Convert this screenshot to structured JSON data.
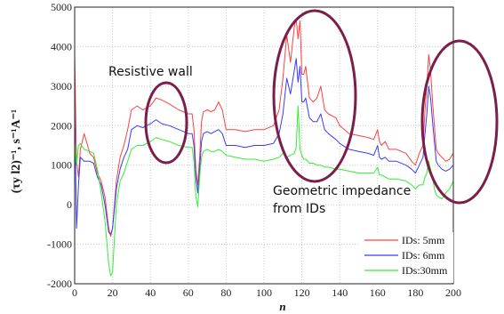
{
  "chart_data": {
    "type": "line",
    "xlabel": "n",
    "ylabel": "(τy l2)⁻¹, s⁻¹A⁻¹",
    "xlim": [
      0,
      200
    ],
    "ylim": [
      -2000,
      5000
    ],
    "xticks": [
      "0",
      "20",
      "40",
      "60",
      "80",
      "100",
      "120",
      "140",
      "160",
      "180",
      "200"
    ],
    "yticks": [
      "-2000",
      "-1000",
      "0",
      "1000",
      "2000",
      "3000",
      "4000",
      "5000"
    ],
    "grid": true,
    "legend_position": "bottom-right",
    "annotations": {
      "resistive": "Resistive wall",
      "geometric_1": "Geometric impedance",
      "geometric_2": "from IDs"
    },
    "ellipse_color": "#7b1f4a",
    "series": [
      {
        "name": "IDs: 5mm",
        "color": "#ff4040",
        "x": [
          0,
          1,
          2,
          3,
          5,
          8,
          10,
          12,
          14,
          16,
          18,
          19,
          20,
          22,
          24,
          26,
          28,
          30,
          33,
          36,
          40,
          43,
          46,
          50,
          55,
          60,
          62,
          63,
          64,
          65,
          66,
          67,
          68,
          70,
          72,
          74,
          76,
          78,
          80,
          85,
          90,
          95,
          100,
          105,
          108,
          110,
          112,
          114,
          116,
          117,
          118,
          119,
          120,
          121,
          122,
          124,
          126,
          128,
          130,
          132,
          134,
          138,
          140,
          145,
          150,
          155,
          158,
          160,
          161,
          162,
          164,
          166,
          170,
          175,
          178,
          180,
          182,
          184,
          185,
          186,
          187,
          188,
          189,
          190,
          191,
          192,
          194,
          196,
          198,
          200
        ],
        "y": [
          3800,
          1100,
          700,
          1400,
          1800,
          1300,
          1200,
          800,
          600,
          200,
          -600,
          -800,
          -600,
          600,
          1200,
          1500,
          1900,
          2400,
          2500,
          2400,
          2500,
          2700,
          2650,
          2550,
          2400,
          2300,
          2300,
          1900,
          900,
          500,
          1200,
          2100,
          2350,
          2400,
          2350,
          2400,
          2600,
          2400,
          1900,
          1900,
          1850,
          1900,
          1900,
          2000,
          2400,
          3200,
          4300,
          3600,
          4500,
          4700,
          4200,
          4650,
          3300,
          3300,
          3500,
          2700,
          2600,
          2700,
          3000,
          2400,
          2300,
          2200,
          2000,
          1800,
          1750,
          1700,
          1650,
          1900,
          1600,
          1500,
          1600,
          1400,
          1400,
          1300,
          1100,
          1000,
          1300,
          1500,
          2400,
          3000,
          3800,
          3400,
          2600,
          2000,
          1400,
          1300,
          1200,
          1100,
          1150,
          1300
        ]
      },
      {
        "name": "IDs: 6mm",
        "color": "#3a3aff",
        "x": [
          0,
          1,
          2,
          3,
          5,
          8,
          10,
          12,
          14,
          16,
          18,
          19,
          20,
          22,
          24,
          26,
          28,
          30,
          33,
          36,
          40,
          43,
          46,
          50,
          55,
          60,
          62,
          63,
          64,
          65,
          66,
          67,
          68,
          70,
          72,
          74,
          76,
          78,
          80,
          85,
          90,
          95,
          100,
          105,
          108,
          110,
          112,
          114,
          116,
          117,
          118,
          119,
          120,
          121,
          122,
          124,
          126,
          128,
          130,
          132,
          134,
          138,
          140,
          145,
          150,
          155,
          158,
          160,
          161,
          162,
          164,
          166,
          170,
          175,
          178,
          180,
          182,
          184,
          185,
          186,
          187,
          188,
          189,
          190,
          191,
          192,
          194,
          196,
          198,
          200
        ],
        "y": [
          2500,
          -600,
          500,
          1200,
          1100,
          1100,
          1050,
          700,
          500,
          0,
          -700,
          -750,
          -600,
          400,
          900,
          1200,
          1400,
          1900,
          2000,
          1950,
          2050,
          2150,
          2050,
          2000,
          1900,
          1800,
          1800,
          1500,
          700,
          300,
          900,
          1600,
          1800,
          1850,
          1800,
          1850,
          1900,
          1800,
          1500,
          1500,
          1450,
          1500,
          1500,
          1550,
          1800,
          2300,
          3200,
          2800,
          3400,
          3700,
          3100,
          3500,
          2600,
          2600,
          2700,
          2200,
          2100,
          2100,
          2300,
          1900,
          1800,
          1650,
          1550,
          1400,
          1350,
          1300,
          1250,
          1500,
          1200,
          1150,
          1200,
          1100,
          1100,
          1000,
          900,
          800,
          1000,
          1200,
          1800,
          2300,
          3000,
          2700,
          2100,
          1600,
          1100,
          1000,
          900,
          850,
          900,
          1000
        ]
      },
      {
        "name": "IDs:30mm",
        "color": "#33ee33",
        "x": [
          0,
          1,
          2,
          3,
          5,
          8,
          10,
          12,
          14,
          16,
          18,
          19,
          20,
          22,
          24,
          26,
          28,
          30,
          33,
          36,
          40,
          43,
          46,
          50,
          55,
          60,
          62,
          63,
          64,
          65,
          66,
          67,
          68,
          70,
          72,
          74,
          76,
          78,
          80,
          85,
          90,
          95,
          100,
          105,
          108,
          110,
          112,
          114,
          116,
          117,
          118,
          119,
          120,
          121,
          122,
          124,
          126,
          128,
          130,
          132,
          134,
          138,
          140,
          145,
          150,
          155,
          158,
          160,
          161,
          162,
          164,
          166,
          170,
          175,
          178,
          180,
          182,
          184,
          185,
          186,
          187,
          188,
          189,
          190,
          191,
          192,
          194,
          196,
          198,
          200
        ],
        "y": [
          1600,
          1000,
          1500,
          1550,
          1400,
          1350,
          1300,
          900,
          300,
          -400,
          -1500,
          -1800,
          -1700,
          0,
          600,
          800,
          1100,
          1400,
          1500,
          1500,
          1600,
          1700,
          1650,
          1600,
          1500,
          1450,
          1450,
          1100,
          200,
          -50,
          700,
          1200,
          1350,
          1400,
          1350,
          1350,
          1400,
          1350,
          1250,
          1200,
          1150,
          1150,
          1100,
          1150,
          1200,
          1300,
          1200,
          1250,
          1300,
          1450,
          2500,
          1400,
          1250,
          1150,
          1150,
          1050,
          1050,
          1000,
          1000,
          950,
          950,
          900,
          900,
          850,
          800,
          800,
          800,
          950,
          750,
          750,
          700,
          650,
          650,
          600,
          500,
          400,
          500,
          500,
          700,
          800,
          1100,
          900,
          700,
          400,
          250,
          200,
          150,
          300,
          400,
          600
        ]
      }
    ]
  }
}
